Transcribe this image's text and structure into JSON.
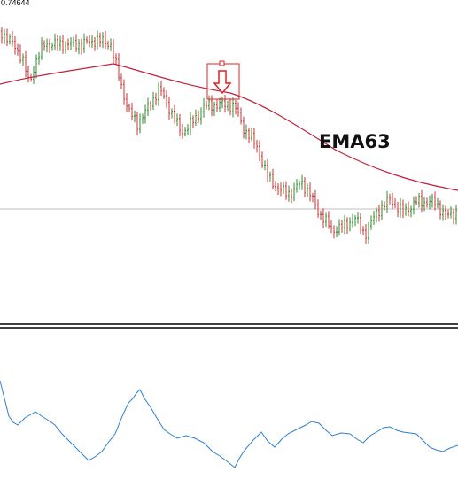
{
  "price_label": "0.74644",
  "indicator_label": "EMA63"
}
